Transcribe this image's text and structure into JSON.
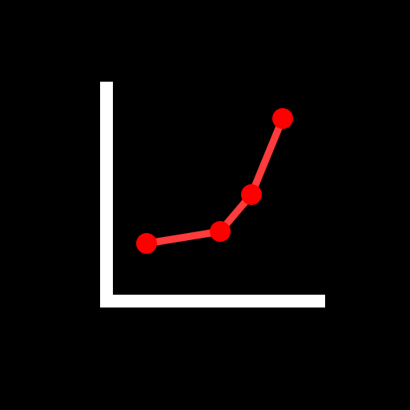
{
  "icon": {
    "name": "line-chart-icon",
    "background_color": "#000000",
    "axis_color": "#FFFFFF",
    "line_color": "#FF3B3B",
    "marker_color": "#FF0000"
  }
}
